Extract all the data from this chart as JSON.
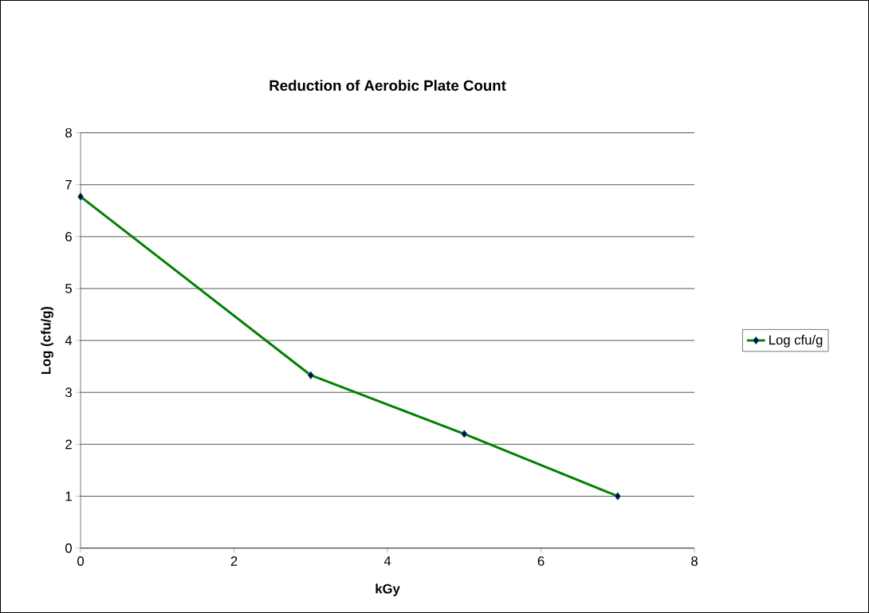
{
  "chart_data": {
    "type": "line",
    "title": "Reduction of Aerobic Plate Count",
    "xlabel": "kGy",
    "ylabel": "Log (cfu/g)",
    "x": [
      0,
      3,
      5,
      7
    ],
    "series": [
      {
        "name": "Log cfu/g",
        "color": "#008000",
        "values": [
          6.77,
          3.33,
          2.2,
          1.0
        ]
      }
    ],
    "xlim": [
      0,
      8
    ],
    "xticks": [
      0,
      2,
      4,
      6,
      8
    ],
    "ylim": [
      0,
      8
    ],
    "yticks": [
      0,
      1,
      2,
      3,
      4,
      5,
      6,
      7,
      8
    ],
    "grid": "y",
    "legend": "right",
    "marker": "diamond",
    "line_style": "solid"
  }
}
